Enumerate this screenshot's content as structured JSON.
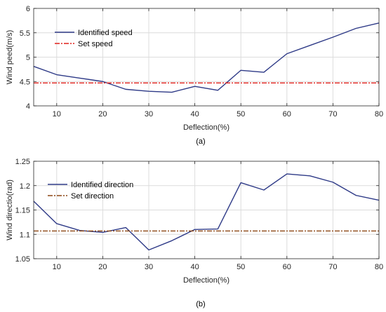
{
  "chart_data": [
    {
      "type": "line",
      "caption": "(a)",
      "xlabel": "Deflection(%)",
      "ylabel": "Wind peed(m/s)",
      "xlim": [
        5,
        80
      ],
      "ylim": [
        4,
        6
      ],
      "xticks": [
        10,
        20,
        30,
        40,
        50,
        60,
        70,
        80
      ],
      "yticks": [
        4,
        4.5,
        5,
        5.5,
        6
      ],
      "ytick_labels": [
        "4",
        "4.5",
        "5",
        "5.5",
        "6"
      ],
      "grid": true,
      "legend_position": "upper-left",
      "series": [
        {
          "name": "Identified speed",
          "color": "#2e3a87",
          "style": "solid",
          "x": [
            5,
            10,
            15,
            20,
            25,
            30,
            35,
            40,
            45,
            50,
            55,
            60,
            65,
            70,
            75,
            80
          ],
          "y": [
            4.81,
            4.64,
            4.57,
            4.5,
            4.34,
            4.3,
            4.28,
            4.4,
            4.32,
            4.73,
            4.69,
            5.07,
            5.24,
            5.41,
            5.59,
            5.7
          ]
        },
        {
          "name": "Set speed",
          "color": "#e0201b",
          "style": "dashdot",
          "x": [
            5,
            80
          ],
          "y": [
            4.47,
            4.47
          ]
        }
      ]
    },
    {
      "type": "line",
      "caption": "(b)",
      "xlabel": "Deflection(%)",
      "ylabel": "Wind directio(rad)",
      "xlim": [
        5,
        80
      ],
      "ylim": [
        1.05,
        1.25
      ],
      "xticks": [
        10,
        20,
        30,
        40,
        50,
        60,
        70,
        80
      ],
      "yticks": [
        1.05,
        1.1,
        1.15,
        1.2,
        1.25
      ],
      "ytick_labels": [
        "1.05",
        "1.1",
        "1.15",
        "1.2",
        "1.25"
      ],
      "grid": true,
      "legend_position": "upper-left",
      "series": [
        {
          "name": "Identified direction",
          "color": "#2e3a87",
          "style": "solid",
          "x": [
            5,
            10,
            15,
            20,
            25,
            30,
            35,
            40,
            45,
            50,
            55,
            60,
            65,
            70,
            75,
            80
          ],
          "y": [
            1.168,
            1.122,
            1.108,
            1.104,
            1.114,
            1.068,
            1.087,
            1.11,
            1.111,
            1.206,
            1.191,
            1.224,
            1.22,
            1.207,
            1.18,
            1.17
          ]
        },
        {
          "name": "Set direction",
          "color": "#8b4513",
          "style": "dashdot",
          "x": [
            5,
            80
          ],
          "y": [
            1.107,
            1.107
          ]
        }
      ]
    }
  ]
}
